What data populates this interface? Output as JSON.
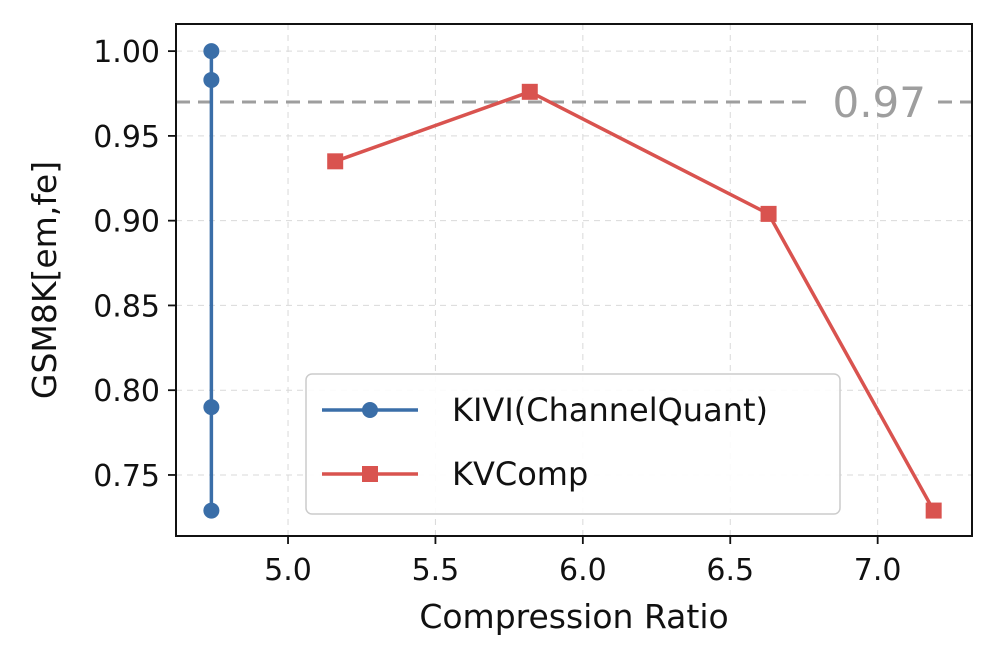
{
  "chart_data": {
    "type": "line",
    "title": "",
    "xlabel": "Compression Ratio",
    "ylabel": "GSM8K[em,fe]",
    "xlim": [
      4.62,
      7.32
    ],
    "ylim": [
      0.714,
      1.016
    ],
    "xticks": [
      5.0,
      5.5,
      6.0,
      6.5,
      7.0
    ],
    "xtick_labels": [
      "5.0",
      "5.5",
      "6.0",
      "6.5",
      "7.0"
    ],
    "yticks": [
      0.75,
      0.8,
      0.85,
      0.9,
      0.95,
      1.0
    ],
    "ytick_labels": [
      "0.75",
      "0.80",
      "0.85",
      "0.90",
      "0.95",
      "1.00"
    ],
    "grid": true,
    "legend_position": "lower-center",
    "reference_line": {
      "y": 0.97,
      "label": "0.97",
      "color": "#9e9e9e"
    },
    "series": [
      {
        "name": "KIVI(ChannelQuant)",
        "color": "#3a6ea8",
        "marker": "circle",
        "x": [
          4.74,
          4.74,
          4.74,
          4.74
        ],
        "y": [
          1.0,
          0.983,
          0.79,
          0.729
        ]
      },
      {
        "name": "KVComp",
        "color": "#d9534f",
        "marker": "square",
        "x": [
          5.16,
          5.82,
          6.63,
          7.19
        ],
        "y": [
          0.935,
          0.976,
          0.904,
          0.729
        ]
      }
    ]
  }
}
